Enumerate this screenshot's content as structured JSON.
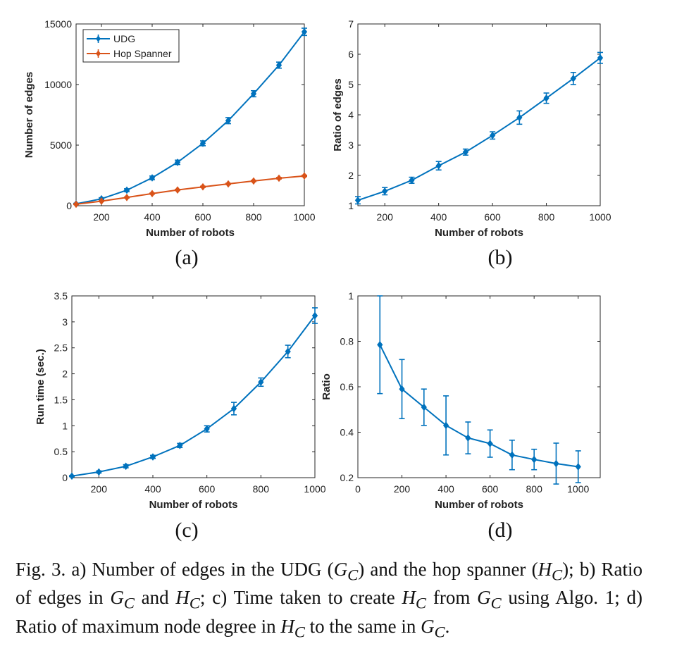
{
  "chart_data": [
    {
      "type": "line",
      "sublabel": "(a)",
      "xlabel": "Number of robots",
      "ylabel": "Number of edges",
      "xlim": [
        100,
        1000
      ],
      "ylim": [
        0,
        15000
      ],
      "xticks": [
        200,
        400,
        600,
        800,
        1000
      ],
      "yticks": [
        0,
        5000,
        10000,
        15000
      ],
      "grid": false,
      "legend": "top-left",
      "x": [
        100,
        200,
        300,
        400,
        500,
        600,
        700,
        800,
        900,
        1000
      ],
      "series": [
        {
          "name": "UDG",
          "color": "#0072BD",
          "values": [
            150,
            570,
            1280,
            2300,
            3580,
            5150,
            7020,
            9240,
            11600,
            14350
          ],
          "err": [
            50,
            90,
            120,
            150,
            180,
            200,
            250,
            250,
            250,
            300
          ]
        },
        {
          "name": "Hop Spanner",
          "color": "#D95319",
          "values": [
            120,
            380,
            680,
            1000,
            1300,
            1560,
            1800,
            2040,
            2270,
            2460
          ],
          "err": [
            20,
            30,
            40,
            40,
            50,
            50,
            50,
            50,
            60,
            60
          ]
        }
      ]
    },
    {
      "type": "line",
      "sublabel": "(b)",
      "xlabel": "Number of robots",
      "ylabel": "Ratio of edges",
      "xlim": [
        100,
        1000
      ],
      "ylim": [
        1,
        7
      ],
      "xticks": [
        200,
        400,
        600,
        800,
        1000
      ],
      "yticks": [
        1,
        2,
        3,
        4,
        5,
        6,
        7
      ],
      "grid": false,
      "x": [
        100,
        200,
        300,
        400,
        500,
        600,
        700,
        800,
        900,
        1000
      ],
      "series": [
        {
          "color": "#0072BD",
          "values": [
            1.18,
            1.48,
            1.84,
            2.32,
            2.77,
            3.32,
            3.91,
            4.55,
            5.2,
            5.88
          ],
          "err": [
            0.12,
            0.12,
            0.1,
            0.14,
            0.1,
            0.12,
            0.22,
            0.17,
            0.2,
            0.18
          ]
        }
      ]
    },
    {
      "type": "line",
      "sublabel": "(c)",
      "xlabel": "Number of robots",
      "ylabel": "Run time (sec.)",
      "xlim": [
        100,
        1000
      ],
      "ylim": [
        0,
        3.5
      ],
      "xticks": [
        200,
        400,
        600,
        800,
        1000
      ],
      "yticks": [
        0,
        0.5,
        1,
        1.5,
        2,
        2.5,
        3,
        3.5
      ],
      "ytick_labels": [
        "0",
        "0.5",
        "1",
        "1.5",
        "2",
        "2.5",
        "3",
        "3.5"
      ],
      "grid": false,
      "x": [
        100,
        200,
        300,
        400,
        500,
        600,
        700,
        800,
        900,
        1000
      ],
      "series": [
        {
          "color": "#0072BD",
          "values": [
            0.03,
            0.11,
            0.22,
            0.4,
            0.62,
            0.94,
            1.33,
            1.84,
            2.43,
            3.12
          ],
          "err": [
            0.01,
            0.02,
            0.03,
            0.03,
            0.04,
            0.06,
            0.12,
            0.08,
            0.12,
            0.15
          ]
        }
      ]
    },
    {
      "type": "line",
      "sublabel": "(d)",
      "xlabel": "Number of robots",
      "ylabel": "Ratio",
      "xlim": [
        0,
        1100
      ],
      "ylim": [
        0.2,
        1
      ],
      "xticks": [
        0,
        200,
        400,
        600,
        800,
        1000
      ],
      "yticks": [
        0.2,
        0.4,
        0.6,
        0.8,
        1
      ],
      "ytick_labels": [
        "0.2",
        "0.4",
        "0.6",
        "0.8",
        "1"
      ],
      "grid": false,
      "x": [
        100,
        200,
        300,
        400,
        500,
        600,
        700,
        800,
        900,
        1000
      ],
      "series": [
        {
          "color": "#0072BD",
          "values": [
            0.785,
            0.59,
            0.51,
            0.43,
            0.375,
            0.35,
            0.3,
            0.28,
            0.262,
            0.248
          ],
          "err": [
            0.215,
            0.13,
            0.08,
            0.13,
            0.07,
            0.06,
            0.065,
            0.045,
            0.09,
            0.07
          ]
        }
      ]
    }
  ],
  "caption": {
    "p1": "Fig. 3.    a) Number of edges in the UDG (",
    "g1": "G",
    "s1": "C",
    "p2": ") and the hop spanner (",
    "h1": "H",
    "s2": "C",
    "p3": "); b) Ratio of edges in ",
    "g2": "G",
    "s3": "C",
    "p4": " and ",
    "h2": "H",
    "s4": "C",
    "p5": "; c) Time taken to create ",
    "h3": "H",
    "s5": "C",
    "p6": " from ",
    "g3": "G",
    "s6": "C",
    "p7": " using Algo. 1; d) Ratio of maximum node degree in ",
    "h4": "H",
    "s7": "C",
    "p8": " to the same in ",
    "g4": "G",
    "s8": "C",
    "p9": "."
  }
}
